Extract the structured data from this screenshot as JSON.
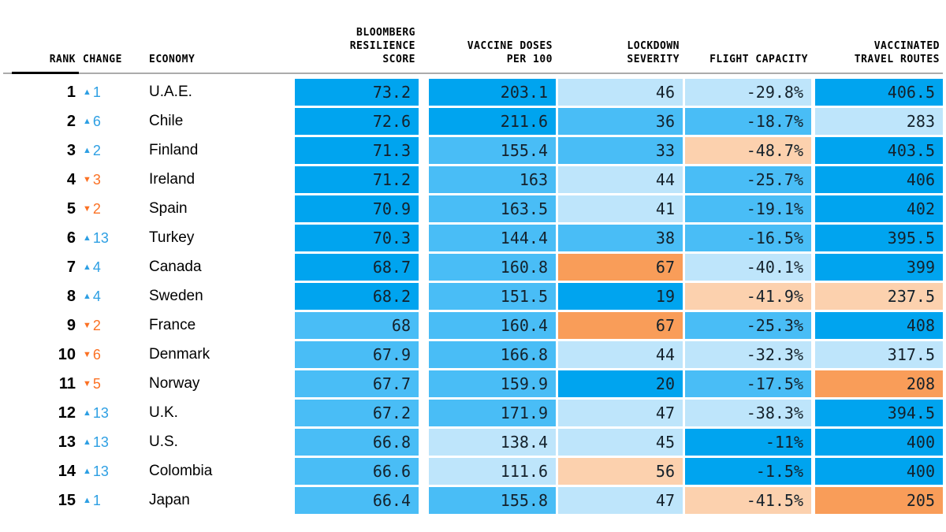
{
  "colors": {
    "b1": "#00a4ef",
    "b2": "#49bdf6",
    "b4": "#bee5fb",
    "o1": "#f99d59",
    "o2": "#fcd1ae"
  },
  "arrow": {
    "up": {
      "symbol": "▲",
      "color": "#2d9fe3"
    },
    "down": {
      "symbol": "▼",
      "color": "#fb7124"
    }
  },
  "header": {
    "rank": "RANK",
    "change": "CHANGE",
    "economy": "ECONOMY",
    "score": "BLOOMBERG\nRESILIENCE\nSCORE",
    "vaccine": "VACCINE DOSES\nPER 100",
    "lockdown": "LOCKDOWN\nSEVERITY",
    "flight": "FLIGHT CAPACITY",
    "routes": "VACCINATED\nTRAVEL ROUTES"
  },
  "chart_data": {
    "type": "table",
    "columns": [
      "RANK",
      "CHANGE",
      "ECONOMY",
      "BLOOMBERG RESILIENCE SCORE",
      "VACCINE DOSES PER 100",
      "LOCKDOWN SEVERITY",
      "FLIGHT CAPACITY",
      "VACCINATED TRAVEL ROUTES"
    ],
    "rows": [
      {
        "rank": "1",
        "change": "1",
        "dir": "up",
        "economy": "U.A.E.",
        "score": {
          "v": "73.2",
          "c": "b1"
        },
        "vaccine": {
          "v": "203.1",
          "c": "b1"
        },
        "lockdown": {
          "v": "46",
          "c": "b4"
        },
        "flight": {
          "v": "-29.8%",
          "c": "b4"
        },
        "routes": {
          "v": "406.5",
          "c": "b1"
        }
      },
      {
        "rank": "2",
        "change": "6",
        "dir": "up",
        "economy": "Chile",
        "score": {
          "v": "72.6",
          "c": "b1"
        },
        "vaccine": {
          "v": "211.6",
          "c": "b1"
        },
        "lockdown": {
          "v": "36",
          "c": "b2"
        },
        "flight": {
          "v": "-18.7%",
          "c": "b2"
        },
        "routes": {
          "v": "283",
          "c": "b4"
        }
      },
      {
        "rank": "3",
        "change": "2",
        "dir": "up",
        "economy": "Finland",
        "score": {
          "v": "71.3",
          "c": "b1"
        },
        "vaccine": {
          "v": "155.4",
          "c": "b2"
        },
        "lockdown": {
          "v": "33",
          "c": "b2"
        },
        "flight": {
          "v": "-48.7%",
          "c": "o2"
        },
        "routes": {
          "v": "403.5",
          "c": "b1"
        }
      },
      {
        "rank": "4",
        "change": "3",
        "dir": "down",
        "economy": "Ireland",
        "score": {
          "v": "71.2",
          "c": "b1"
        },
        "vaccine": {
          "v": "163",
          "c": "b2"
        },
        "lockdown": {
          "v": "44",
          "c": "b4"
        },
        "flight": {
          "v": "-25.7%",
          "c": "b2"
        },
        "routes": {
          "v": "406",
          "c": "b1"
        }
      },
      {
        "rank": "5",
        "change": "2",
        "dir": "down",
        "economy": "Spain",
        "score": {
          "v": "70.9",
          "c": "b1"
        },
        "vaccine": {
          "v": "163.5",
          "c": "b2"
        },
        "lockdown": {
          "v": "41",
          "c": "b4"
        },
        "flight": {
          "v": "-19.1%",
          "c": "b2"
        },
        "routes": {
          "v": "402",
          "c": "b1"
        }
      },
      {
        "rank": "6",
        "change": "13",
        "dir": "up",
        "economy": "Turkey",
        "score": {
          "v": "70.3",
          "c": "b1"
        },
        "vaccine": {
          "v": "144.4",
          "c": "b2"
        },
        "lockdown": {
          "v": "38",
          "c": "b2"
        },
        "flight": {
          "v": "-16.5%",
          "c": "b2"
        },
        "routes": {
          "v": "395.5",
          "c": "b1"
        }
      },
      {
        "rank": "7",
        "change": "4",
        "dir": "up",
        "economy": "Canada",
        "score": {
          "v": "68.7",
          "c": "b1"
        },
        "vaccine": {
          "v": "160.8",
          "c": "b2"
        },
        "lockdown": {
          "v": "67",
          "c": "o1"
        },
        "flight": {
          "v": "-40.1%",
          "c": "b4"
        },
        "routes": {
          "v": "399",
          "c": "b1"
        }
      },
      {
        "rank": "8",
        "change": "4",
        "dir": "up",
        "economy": "Sweden",
        "score": {
          "v": "68.2",
          "c": "b1"
        },
        "vaccine": {
          "v": "151.5",
          "c": "b2"
        },
        "lockdown": {
          "v": "19",
          "c": "b1"
        },
        "flight": {
          "v": "-41.9%",
          "c": "o2"
        },
        "routes": {
          "v": "237.5",
          "c": "o2"
        }
      },
      {
        "rank": "9",
        "change": "2",
        "dir": "down",
        "economy": "France",
        "score": {
          "v": "68",
          "c": "b2"
        },
        "vaccine": {
          "v": "160.4",
          "c": "b2"
        },
        "lockdown": {
          "v": "67",
          "c": "o1"
        },
        "flight": {
          "v": "-25.3%",
          "c": "b2"
        },
        "routes": {
          "v": "408",
          "c": "b1"
        }
      },
      {
        "rank": "10",
        "change": "6",
        "dir": "down",
        "economy": "Denmark",
        "score": {
          "v": "67.9",
          "c": "b2"
        },
        "vaccine": {
          "v": "166.8",
          "c": "b2"
        },
        "lockdown": {
          "v": "44",
          "c": "b4"
        },
        "flight": {
          "v": "-32.3%",
          "c": "b4"
        },
        "routes": {
          "v": "317.5",
          "c": "b4"
        }
      },
      {
        "rank": "11",
        "change": "5",
        "dir": "down",
        "economy": "Norway",
        "score": {
          "v": "67.7",
          "c": "b2"
        },
        "vaccine": {
          "v": "159.9",
          "c": "b2"
        },
        "lockdown": {
          "v": "20",
          "c": "b1"
        },
        "flight": {
          "v": "-17.5%",
          "c": "b2"
        },
        "routes": {
          "v": "208",
          "c": "o1"
        }
      },
      {
        "rank": "12",
        "change": "13",
        "dir": "up",
        "economy": "U.K.",
        "score": {
          "v": "67.2",
          "c": "b2"
        },
        "vaccine": {
          "v": "171.9",
          "c": "b2"
        },
        "lockdown": {
          "v": "47",
          "c": "b4"
        },
        "flight": {
          "v": "-38.3%",
          "c": "b4"
        },
        "routes": {
          "v": "394.5",
          "c": "b1"
        }
      },
      {
        "rank": "13",
        "change": "13",
        "dir": "up",
        "economy": "U.S.",
        "score": {
          "v": "66.8",
          "c": "b2"
        },
        "vaccine": {
          "v": "138.4",
          "c": "b4"
        },
        "lockdown": {
          "v": "45",
          "c": "b4"
        },
        "flight": {
          "v": "-11%",
          "c": "b1"
        },
        "routes": {
          "v": "400",
          "c": "b1"
        }
      },
      {
        "rank": "14",
        "change": "13",
        "dir": "up",
        "economy": "Colombia",
        "score": {
          "v": "66.6",
          "c": "b2"
        },
        "vaccine": {
          "v": "111.6",
          "c": "b4"
        },
        "lockdown": {
          "v": "56",
          "c": "o2"
        },
        "flight": {
          "v": "-1.5%",
          "c": "b1"
        },
        "routes": {
          "v": "400",
          "c": "b1"
        }
      },
      {
        "rank": "15",
        "change": "1",
        "dir": "up",
        "economy": "Japan",
        "score": {
          "v": "66.4",
          "c": "b2"
        },
        "vaccine": {
          "v": "155.8",
          "c": "b2"
        },
        "lockdown": {
          "v": "47",
          "c": "b4"
        },
        "flight": {
          "v": "-41.5%",
          "c": "o2"
        },
        "routes": {
          "v": "205",
          "c": "o1"
        }
      }
    ]
  }
}
